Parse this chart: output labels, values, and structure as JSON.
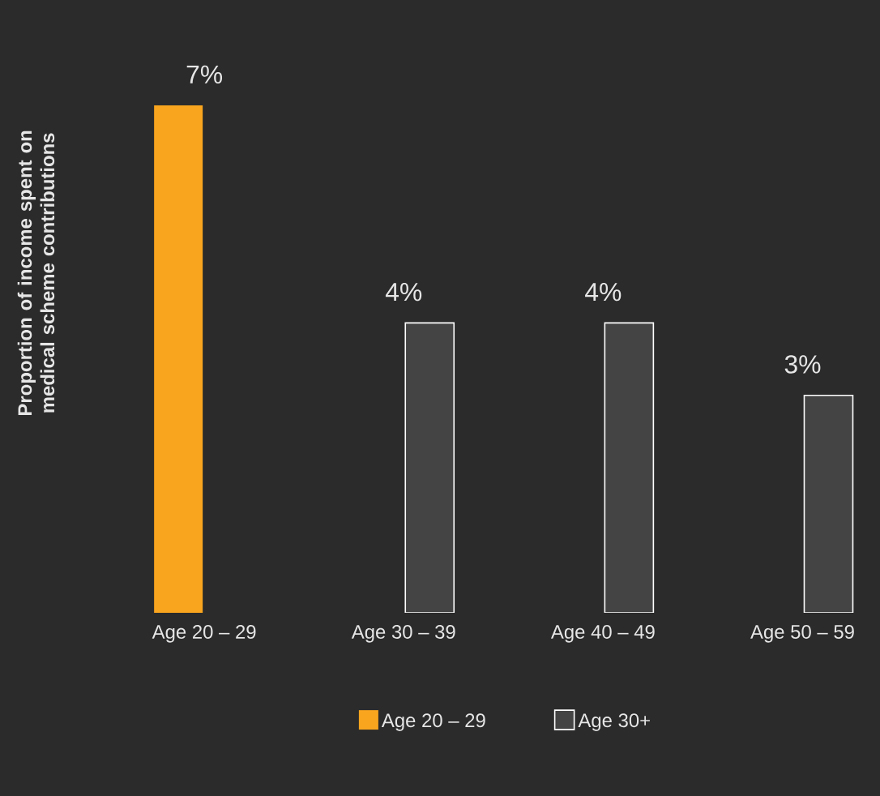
{
  "chart_data": {
    "type": "bar",
    "ylabel": "Proportion of income spent on medical scheme contributions",
    "categories": [
      "Age 20 – 29",
      "Age 30 – 39",
      "Age 40 – 49",
      "Age 50 – 59"
    ],
    "series": [
      {
        "name": "Age 20 – 29",
        "color": "#f9a51e",
        "values": [
          7,
          null,
          null,
          null
        ],
        "value_labels": [
          "7%",
          null,
          null,
          null
        ]
      },
      {
        "name": "Age 30+",
        "color": "#444444",
        "values": [
          null,
          4,
          4,
          3
        ],
        "value_labels": [
          null,
          "4%",
          "4%",
          "3%"
        ]
      }
    ],
    "relative": false,
    "legend": "bottom"
  }
}
